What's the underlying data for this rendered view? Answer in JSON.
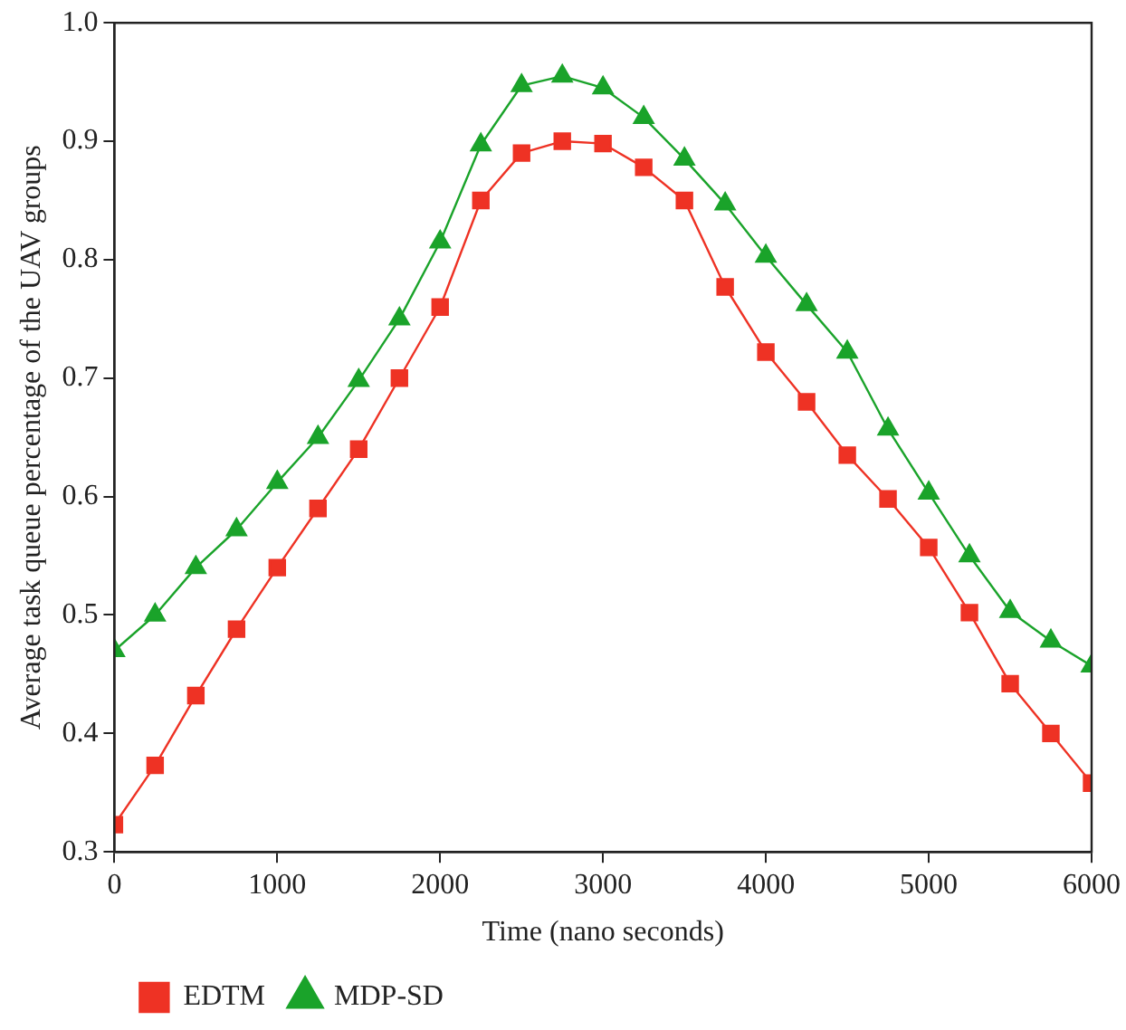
{
  "chart_data": {
    "type": "line",
    "xlabel": "Time (nano seconds)",
    "ylabel": "Average task queue percentage of the UAV groups",
    "x": [
      0,
      250,
      500,
      750,
      1000,
      1250,
      1500,
      1750,
      2000,
      2250,
      2500,
      2750,
      3000,
      3250,
      3500,
      3750,
      4000,
      4250,
      4500,
      4750,
      5000,
      5250,
      5500,
      5750,
      6000
    ],
    "series": [
      {
        "name": "EDTM",
        "color": "#ee3224",
        "marker": "square",
        "values": [
          0.323,
          0.373,
          0.432,
          0.488,
          0.54,
          0.59,
          0.64,
          0.7,
          0.76,
          0.85,
          0.89,
          0.9,
          0.898,
          0.878,
          0.85,
          0.777,
          0.722,
          0.68,
          0.635,
          0.598,
          0.557,
          0.502,
          0.442,
          0.4,
          0.358
        ]
      },
      {
        "name": "MDP-SD",
        "color": "#1aa32a",
        "marker": "triangle",
        "values": [
          0.47,
          0.5,
          0.54,
          0.572,
          0.612,
          0.65,
          0.698,
          0.75,
          0.815,
          0.897,
          0.947,
          0.955,
          0.945,
          0.92,
          0.885,
          0.847,
          0.803,
          0.762,
          0.722,
          0.657,
          0.603,
          0.55,
          0.503,
          0.478,
          0.457
        ]
      }
    ],
    "xlim": [
      0,
      6000
    ],
    "xticks": [
      0,
      1000,
      2000,
      3000,
      4000,
      5000,
      6000
    ],
    "ylim": [
      0.3,
      1.0
    ],
    "yticks": [
      {
        "value": 0.3,
        "label": "0.3"
      },
      {
        "value": 0.4,
        "label": "0.4"
      },
      {
        "value": 0.5,
        "label": "0.5"
      },
      {
        "value": 0.6,
        "label": "0.6"
      },
      {
        "value": 0.7,
        "label": "0.7"
      },
      {
        "value": 0.8,
        "label": "0.8"
      },
      {
        "value": 0.9,
        "label": "0.9"
      },
      {
        "value": 1.0,
        "label": "1.0"
      }
    ],
    "grid": false,
    "legend": "bottom left",
    "line_style": "solid"
  }
}
